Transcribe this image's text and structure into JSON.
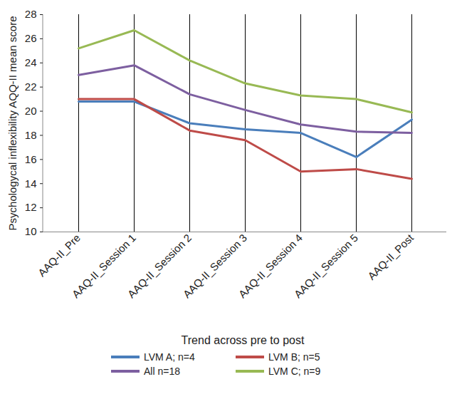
{
  "chart_data": {
    "type": "line",
    "x_label": "Trend across pre to post",
    "y_label": "Psychologycal inflexibility AQQ-II mean score",
    "categories": [
      "AAQ-II_Pre",
      "AAQ-II_Session 1",
      "AAQ-II_Session 2",
      "AAQ-II_Session 3",
      "AAQ-II_Session 4",
      "AAQ-II_Session 5",
      "AAQ-II_Post"
    ],
    "series": [
      {
        "name": "LVM A; n=4",
        "color": "#4a7ebb",
        "values": [
          20.8,
          20.8,
          19.0,
          18.5,
          18.2,
          16.2,
          19.3
        ]
      },
      {
        "name": "LVM B; n=5",
        "color": "#be4b48",
        "values": [
          21.0,
          21.0,
          18.4,
          17.6,
          15.0,
          15.2,
          14.4
        ]
      },
      {
        "name": "All n=18",
        "color": "#7d5fa0",
        "values": [
          23.0,
          23.8,
          21.4,
          20.1,
          18.9,
          18.3,
          18.2
        ]
      },
      {
        "name": "LVM C; n=9",
        "color": "#98b954",
        "values": [
          25.2,
          26.7,
          24.2,
          22.3,
          21.3,
          21.0,
          19.9
        ]
      }
    ],
    "ylim": [
      10,
      28
    ],
    "yticks": [
      10,
      12,
      14,
      16,
      18,
      20,
      22,
      24,
      26,
      28
    ],
    "grid": "x",
    "legend": "bottom"
  }
}
